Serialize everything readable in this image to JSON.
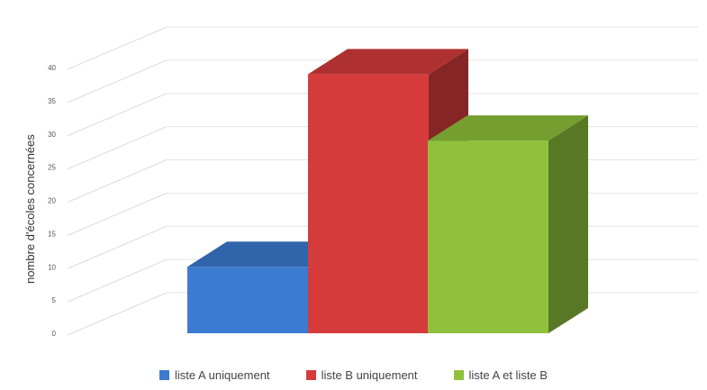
{
  "chart_data": {
    "type": "bar",
    "categories": [
      "liste A uniquement",
      "liste B uniquement",
      "liste A et liste B"
    ],
    "values": [
      10,
      39,
      29
    ],
    "title": "",
    "xlabel": "",
    "ylabel": "nombre d'écoles concernées",
    "ylim": [
      0,
      40
    ],
    "yticks": [
      0,
      5,
      10,
      15,
      20,
      25,
      30,
      35,
      40
    ],
    "grid": true,
    "legend_position": "bottom",
    "style": "3d",
    "colors": [
      "#3b7bd1",
      "#d63b3b",
      "#8fc13c"
    ]
  }
}
